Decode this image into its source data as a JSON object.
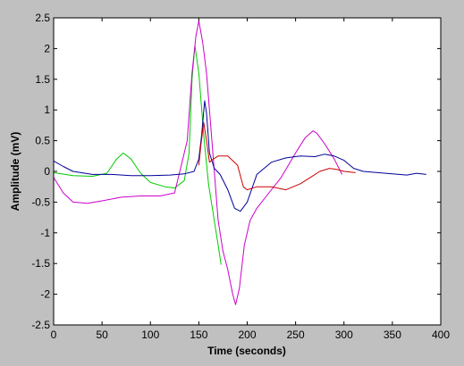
{
  "chart_data": {
    "type": "line",
    "title": "",
    "xlabel": "Time (seconds)",
    "ylabel": "Amplitude (mV)",
    "xlim": [
      0,
      400
    ],
    "ylim": [
      -2.5,
      2.5
    ],
    "xticks": [
      0,
      50,
      100,
      150,
      200,
      250,
      300,
      350,
      400
    ],
    "yticks": [
      2.5,
      2,
      1.5,
      1,
      0.5,
      0,
      -0.5,
      -1,
      -1.5,
      -2,
      -2.5
    ],
    "xtick_labels": [
      "0",
      "50",
      "100",
      "150",
      "200",
      "250",
      "300",
      "350",
      "400"
    ],
    "ytick_labels": [
      "2.5",
      "2",
      "1.5",
      "1",
      "0.5",
      "0",
      "-0.5",
      "-1",
      "-1.5",
      "-2",
      "-2.5"
    ],
    "grid": false,
    "legend": "none",
    "series": [
      {
        "color": "#00cc00",
        "x": [
          0,
          20,
          40,
          55,
          65,
          72,
          80,
          90,
          100,
          115,
          125,
          135,
          140,
          143,
          146,
          150,
          155,
          160,
          165,
          170,
          173
        ],
        "y": [
          -0.02,
          -0.07,
          -0.08,
          -0.03,
          0.2,
          0.3,
          0.2,
          -0.03,
          -0.18,
          -0.25,
          -0.27,
          -0.15,
          0.3,
          1.5,
          2.05,
          1.6,
          0.6,
          -0.2,
          -0.7,
          -1.2,
          -1.52
        ]
      },
      {
        "color": "#cc00cc",
        "x": [
          0,
          10,
          20,
          35,
          50,
          70,
          90,
          110,
          125,
          138,
          143,
          147,
          150,
          154,
          158,
          162,
          166,
          170,
          175,
          180,
          185,
          188,
          192,
          197,
          203,
          210,
          220,
          235,
          250,
          260,
          268,
          272,
          280,
          290,
          298
        ],
        "y": [
          -0.1,
          -0.35,
          -0.5,
          -0.52,
          -0.48,
          -0.42,
          -0.4,
          -0.4,
          -0.35,
          0.5,
          1.6,
          2.2,
          2.45,
          2.1,
          1.6,
          0.8,
          0.0,
          -0.8,
          -1.3,
          -1.6,
          -2.0,
          -2.17,
          -1.9,
          -1.2,
          -0.8,
          -0.6,
          -0.4,
          -0.1,
          0.3,
          0.55,
          0.66,
          0.62,
          0.45,
          0.2,
          -0.05
        ]
      },
      {
        "color": "#000099",
        "x": [
          0,
          10,
          20,
          40,
          60,
          80,
          100,
          120,
          135,
          145,
          150,
          153,
          156,
          158,
          161,
          166,
          172,
          180,
          187,
          193,
          200,
          210,
          225,
          240,
          255,
          270,
          280,
          290,
          300,
          310,
          320,
          335,
          350,
          365,
          375,
          385
        ],
        "y": [
          0.17,
          0.08,
          0.0,
          -0.05,
          -0.05,
          -0.07,
          -0.07,
          -0.06,
          -0.04,
          0.0,
          0.2,
          0.6,
          1.15,
          0.95,
          0.3,
          0.05,
          -0.05,
          -0.3,
          -0.6,
          -0.65,
          -0.5,
          -0.05,
          0.15,
          0.22,
          0.25,
          0.24,
          0.28,
          0.25,
          0.18,
          0.05,
          0.0,
          -0.02,
          -0.04,
          -0.06,
          -0.03,
          -0.05
        ]
      },
      {
        "color": "#cc0000",
        "x": [
          150,
          152,
          155,
          158,
          161,
          165,
          170,
          180,
          190,
          196,
          200,
          210,
          225,
          240,
          255,
          265,
          275,
          285,
          293,
          300,
          312
        ],
        "y": [
          0.1,
          0.4,
          0.8,
          0.5,
          0.15,
          0.2,
          0.25,
          0.25,
          0.1,
          -0.25,
          -0.3,
          -0.25,
          -0.25,
          -0.3,
          -0.2,
          -0.1,
          0.0,
          0.05,
          0.03,
          0.0,
          -0.02
        ]
      }
    ]
  }
}
